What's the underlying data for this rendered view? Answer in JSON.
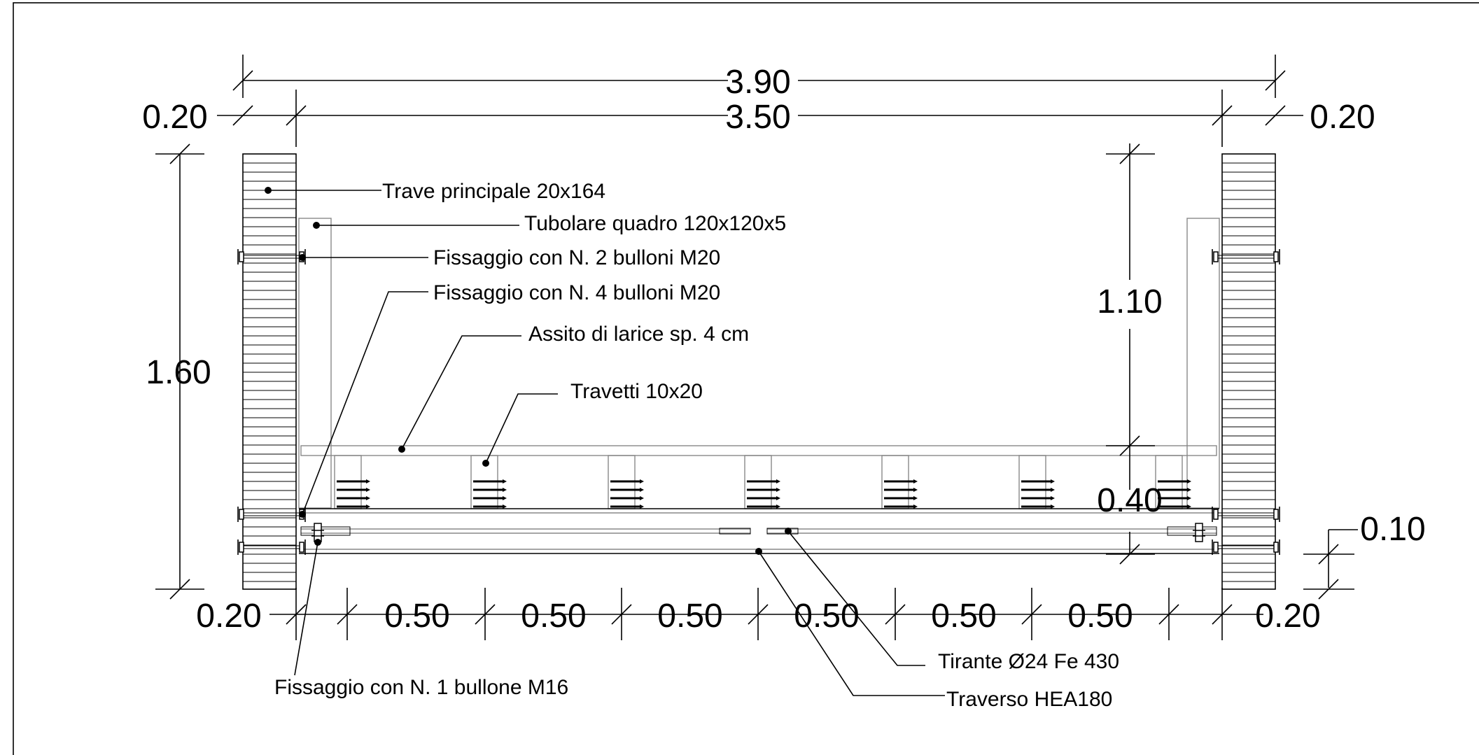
{
  "dimensions": {
    "overall_width": "3.90",
    "inner_width": "3.50",
    "left_beam_width": "0.20",
    "right_beam_width": "0.20",
    "height": "1.60",
    "railing_height": "1.10",
    "deck_depth": "0.40",
    "bottom_offset": "0.10",
    "bottom_left": "0.20",
    "bottom_right": "0.20",
    "spacings": [
      "0.50",
      "0.50",
      "0.50",
      "0.50",
      "0.50",
      "0.50"
    ]
  },
  "labels": {
    "main_beam": "Trave principale 20x164",
    "square_tube": "Tubolare quadro 120x120x5",
    "fixing_2_bolts": "Fissaggio con  N. 2 bulloni M20",
    "fixing_4_bolts": "Fissaggio con  N. 4 bulloni M20",
    "decking": "Assito di larice sp. 4 cm",
    "joists": "Travetti 10x20",
    "tie_rod": "Tirante Ø24 Fe 430",
    "crossbeam": "Traverso HEA180",
    "fixing_1_bolt": "Fissaggio con  N. 1 bullone M16"
  }
}
